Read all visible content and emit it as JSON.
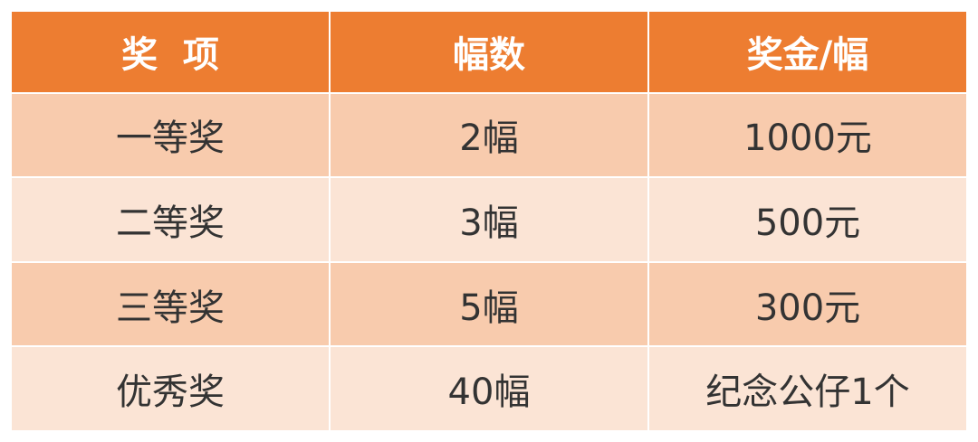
{
  "table": {
    "headers": [
      "奖  项",
      "幅数",
      "奖金/幅"
    ],
    "rows": [
      [
        "一等奖",
        "2幅",
        "1000元"
      ],
      [
        "二等奖",
        "3幅",
        "500元"
      ],
      [
        "三等奖",
        "5幅",
        "300元"
      ],
      [
        "优秀奖",
        "40幅",
        "纪念公仔1个"
      ]
    ]
  },
  "colors": {
    "header": "#ED7D31",
    "row_odd": "#F8CBAD",
    "row_even": "#FBE4D5"
  }
}
